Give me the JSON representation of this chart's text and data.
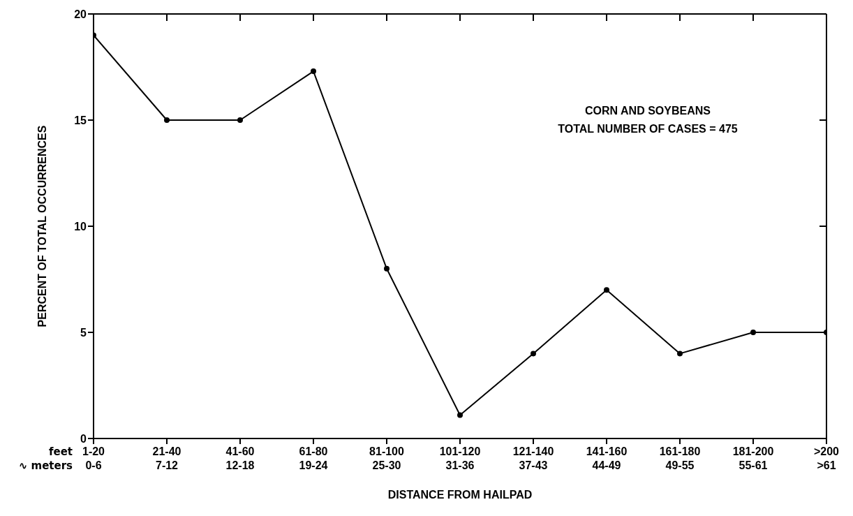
{
  "chart_data": {
    "type": "line",
    "xlabel": "DISTANCE FROM HAILPAD",
    "ylabel": "PERCENT OF TOTAL OCCURRENCES",
    "categories": [
      "1-20\n0-6",
      "21-40\n7-12",
      "41-60\n12-18",
      "61-80\n19-24",
      "81-100\n25-30",
      "101-120\n31-36",
      "121-140\n37-43",
      "141-160\n44-49",
      "161-180\n49-55",
      "181-200\n55-61",
      ">200\n>61"
    ],
    "values": [
      19,
      15,
      15,
      17.3,
      8,
      1.1,
      4,
      7,
      4,
      5,
      5
    ],
    "color": "#000000",
    "ylim": [
      0,
      20
    ],
    "yticks": [
      0,
      5,
      10,
      15,
      20
    ],
    "grid": false,
    "legend": false,
    "marker": "circle",
    "line_style": "solid",
    "annotations": [
      "feet",
      "∿ meters",
      "CORN AND SOYBEANS",
      "TOTAL NUMBER OF CASES = 475"
    ]
  }
}
